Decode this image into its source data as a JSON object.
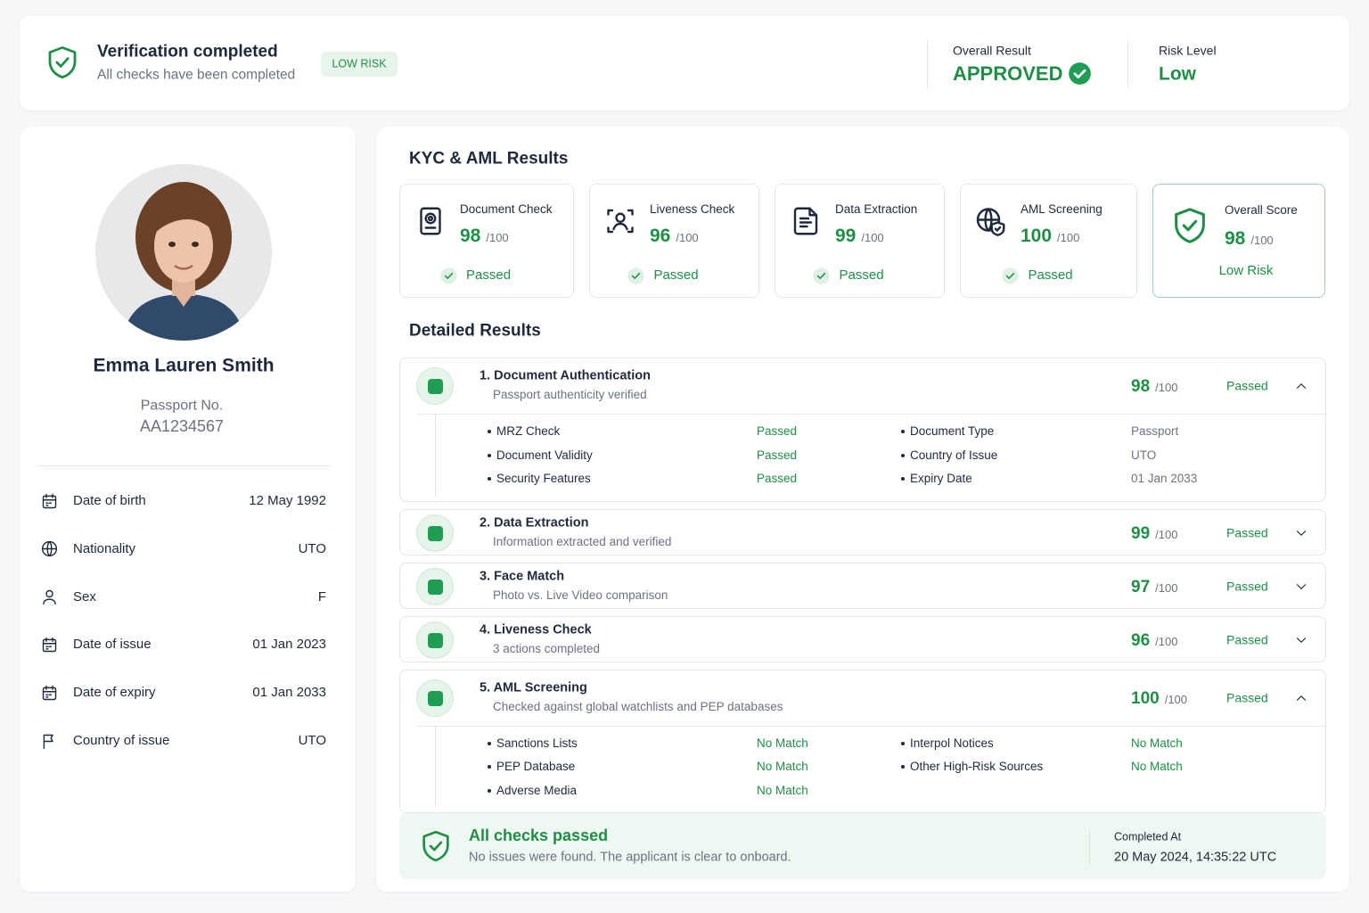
{
  "header": {
    "title": "Verification completed",
    "subtitle": "All checks have been completed",
    "badge": "LOW RISK",
    "result_label": "Overall Result",
    "result": "APPROVED",
    "risk_label": "Risk Level",
    "risk": "Low"
  },
  "profile": {
    "name": "Emma Lauren Smith",
    "passport_label": "Passport No.",
    "passport_number": "AA1234567",
    "fields": [
      {
        "label": "Date of birth",
        "value": "12 May 1992"
      },
      {
        "label": "Nationality",
        "value": "UTO"
      },
      {
        "label": "Sex",
        "value": "F"
      },
      {
        "label": "Date of issue",
        "value": "01 Jan 2023"
      },
      {
        "label": "Date of expiry",
        "value": "01 Jan 2033"
      },
      {
        "label": "Country of issue",
        "value": "UTO"
      }
    ]
  },
  "kyc": {
    "title": "KYC & AML Results",
    "cards": [
      {
        "title": "Document Check",
        "score": 98,
        "max": "/100",
        "status": "Passed"
      },
      {
        "title": "Liveness Check",
        "score": 96,
        "max": "/100",
        "status": "Passed"
      },
      {
        "title": "Data Extraction",
        "score": 99,
        "max": "/100",
        "status": "Passed"
      },
      {
        "title": "AML Screening",
        "score": 100,
        "max": "/100",
        "status": "Passed"
      }
    ],
    "overall": {
      "title": "Overall Score",
      "score": 98,
      "max": "/100",
      "status": "Low Risk"
    }
  },
  "detailed": {
    "title": "Detailed Results",
    "items": [
      {
        "title": "1. Document Authentication",
        "subtitle": "Passport authenticity verified",
        "score": 98,
        "max": "/100",
        "status": "Passed",
        "expanded": true,
        "left": [
          {
            "label": "MRZ Check",
            "value": "Passed"
          },
          {
            "label": "Document Validity",
            "value": "Passed"
          },
          {
            "label": "Security Features",
            "value": "Passed"
          }
        ],
        "right": [
          {
            "label": "Document Type",
            "value": "Passport"
          },
          {
            "label": "Country of Issue",
            "value": "UTO"
          },
          {
            "label": "Expiry Date",
            "value": "01 Jan 2033"
          }
        ]
      },
      {
        "title": "2. Data Extraction",
        "subtitle": "Information extracted and verified",
        "score": 99,
        "max": "/100",
        "status": "Passed",
        "expanded": false
      },
      {
        "title": "3. Face Match",
        "subtitle": "Photo vs. Live Video comparison",
        "score": 97,
        "max": "/100",
        "status": "Passed",
        "expanded": false
      },
      {
        "title": "4. Liveness Check",
        "subtitle": "3 actions completed",
        "score": 96,
        "max": "/100",
        "status": "Passed",
        "expanded": false
      },
      {
        "title": "5. AML Screening",
        "subtitle": "Checked against global watchlists and PEP databases",
        "score": 100,
        "max": "/100",
        "status": "Passed",
        "expanded": true,
        "left": [
          {
            "label": "Sanctions Lists",
            "value": "No Match"
          },
          {
            "label": "PEP Database",
            "value": "No Match"
          },
          {
            "label": "Adverse Media",
            "value": "No Match"
          }
        ],
        "right": [
          {
            "label": "Interpol Notices",
            "value": "No Match"
          },
          {
            "label": "Other High-Risk Sources",
            "value": "No Match"
          }
        ]
      }
    ]
  },
  "summary": {
    "title": "All checks passed",
    "text": "No issues were found. The applicant is clear to onboard.",
    "completed_label": "Completed At",
    "completed_at": "20 May 2024, 14:35:22 UTC"
  }
}
